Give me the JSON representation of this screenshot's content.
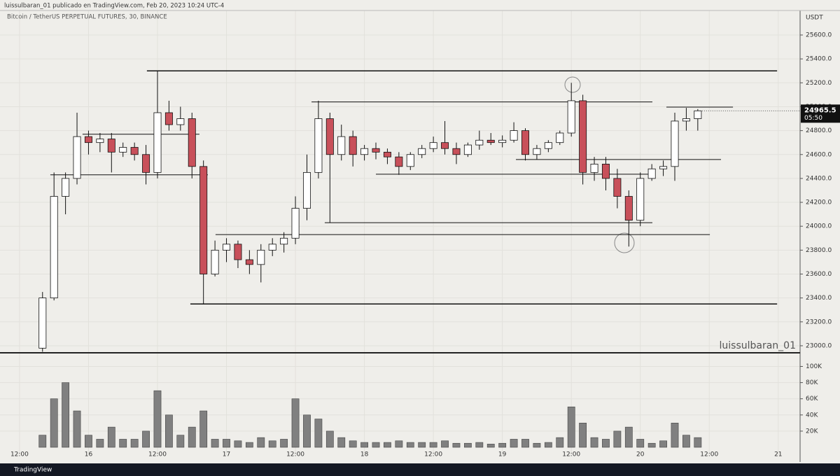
{
  "header": {
    "publisher": "luissulbaran_01 publicado en TradingView.com, Feb 20, 2023 10:24 UTC-4",
    "brand": "TradingView"
  },
  "chart_data": [
    {
      "type": "candlestick",
      "title": "Bitcoin / TetherUS PERPETUAL FUTURES, 30, BINANCE",
      "y_label": "USDT",
      "watermark": "luissulbaran_01",
      "countdown": "05:50",
      "up_color": "#ffffff",
      "down_color": "#c8505a",
      "grid": true,
      "categories": [
        null,
        null,
        null,
        null,
        null,
        null,
        null,
        null,
        null,
        null,
        null,
        null,
        null,
        null,
        null,
        null,
        null,
        null,
        null,
        null,
        null,
        null,
        null,
        null,
        null,
        null,
        null,
        null,
        null,
        null,
        null,
        null,
        null,
        null,
        null,
        null,
        null,
        null,
        null,
        null,
        null,
        null,
        null,
        null,
        null,
        null,
        null,
        null,
        null,
        null,
        null,
        null,
        null,
        null,
        null,
        null,
        null,
        null
      ],
      "open": [
        22980,
        23400,
        24250,
        24400,
        24750,
        24700,
        24730,
        24620,
        24660,
        24600,
        24450,
        24950,
        24850,
        24900,
        24500,
        23600,
        23800,
        23850,
        23720,
        23680,
        23800,
        23850,
        23900,
        24150,
        24450,
        24900,
        24600,
        24750,
        24600,
        24650,
        24620,
        24580,
        24500,
        24600,
        24650,
        24700,
        24650,
        24600,
        24680,
        24720,
        24700,
        24720,
        24800,
        24600,
        24650,
        24700,
        24780,
        25050,
        24450,
        24520,
        24400,
        24250,
        24050,
        24400,
        24480,
        24500,
        24880,
        24900
      ],
      "high": [
        23450,
        24450,
        24450,
        24950,
        24800,
        24780,
        24780,
        24700,
        24700,
        24680,
        25300,
        25050,
        25000,
        24950,
        24550,
        23880,
        23900,
        23880,
        23800,
        23850,
        23900,
        23950,
        24250,
        24600,
        25050,
        24950,
        24850,
        24800,
        24680,
        24700,
        24650,
        24620,
        24620,
        24680,
        24750,
        24880,
        24700,
        24700,
        24800,
        24780,
        24760,
        24870,
        24820,
        24680,
        24720,
        24800,
        25200,
        25100,
        24580,
        24580,
        24480,
        24300,
        24450,
        24520,
        24550,
        24950,
        24990,
        24980
      ],
      "low": [
        22950,
        23380,
        24100,
        24350,
        24600,
        24620,
        24450,
        24580,
        24550,
        24350,
        24400,
        24800,
        24800,
        24400,
        23350,
        23580,
        23700,
        23650,
        23600,
        23530,
        23750,
        23780,
        23850,
        24050,
        24400,
        24030,
        24550,
        24500,
        24550,
        24560,
        24520,
        24430,
        24470,
        24570,
        24620,
        24600,
        24520,
        24580,
        24640,
        24680,
        24660,
        24700,
        24550,
        24560,
        24620,
        24680,
        24750,
        24350,
        24380,
        24300,
        24150,
        23830,
        24000,
        24380,
        24420,
        24380,
        24800,
        24800
      ],
      "close": [
        23400,
        24250,
        24400,
        24750,
        24700,
        24730,
        24620,
        24660,
        24600,
        24450,
        24950,
        24850,
        24900,
        24500,
        23600,
        23800,
        23850,
        23720,
        23680,
        23800,
        23850,
        23900,
        24150,
        24450,
        24900,
        24600,
        24750,
        24600,
        24650,
        24620,
        24580,
        24500,
        24600,
        24650,
        24700,
        24650,
        24600,
        24680,
        24720,
        24700,
        24720,
        24800,
        24600,
        24650,
        24700,
        24780,
        25050,
        24450,
        24520,
        24400,
        24250,
        24050,
        24400,
        24480,
        24500,
        24880,
        24900,
        24965.5
      ],
      "levels": [
        {
          "price": 25300,
          "from": 9.08,
          "to": 63.9
        },
        {
          "price": 23350,
          "from": 12.86,
          "to": 63.9
        },
        {
          "price": 25040,
          "from": 23.4,
          "to": 53.05
        },
        {
          "price": 24770,
          "from": 3.48,
          "to": 13.65
        },
        {
          "price": 24430,
          "from": 0.68,
          "to": 14.38
        },
        {
          "price": 24030,
          "from": 24.55,
          "to": 53.05
        },
        {
          "price": 23930,
          "from": 15.05,
          "to": 58.05
        },
        {
          "price": 24435,
          "from": 29.0,
          "to": 53.05
        },
        {
          "price": 24558,
          "from": 41.18,
          "to": 59.02
        },
        {
          "price": 24997,
          "from": 54.27,
          "to": 60.06
        }
      ],
      "xlim": [
        -3.7,
        65.9
      ],
      "ylim": [
        22947,
        25805
      ],
      "yticks": [
        {
          "value": 23000,
          "label": "23000.0"
        },
        {
          "value": 23200,
          "label": "23200.0"
        },
        {
          "value": 23400,
          "label": "23400.0"
        },
        {
          "value": 23600,
          "label": "23600.0"
        },
        {
          "value": 23800,
          "label": "23800.0"
        },
        {
          "value": 24000,
          "label": "24000.0"
        },
        {
          "value": 24200,
          "label": "24200.0"
        },
        {
          "value": 24400,
          "label": "24400.0"
        },
        {
          "value": 24600,
          "label": "24600.0"
        },
        {
          "value": 24800,
          "label": "24800.0"
        },
        {
          "value": 25000,
          "label": "25000.0"
        },
        {
          "value": 25200,
          "label": "25200.0"
        },
        {
          "value": 25400,
          "label": "25400.0"
        },
        {
          "value": 25600,
          "label": "25600.0"
        }
      ]
    },
    {
      "type": "bar",
      "color": "#808080",
      "values": [
        15000,
        60000,
        80000,
        45000,
        15000,
        10000,
        25000,
        10000,
        10000,
        20000,
        70000,
        40000,
        15000,
        25000,
        45000,
        10000,
        10000,
        8000,
        6000,
        12000,
        8000,
        10000,
        60000,
        40000,
        35000,
        20000,
        12000,
        8000,
        6000,
        6000,
        6000,
        8000,
        6000,
        6000,
        6000,
        8000,
        5000,
        5000,
        6000,
        4000,
        5000,
        10000,
        10000,
        5000,
        6000,
        12000,
        50000,
        30000,
        12000,
        10000,
        20000,
        25000,
        10000,
        5000,
        8000,
        30000,
        15000,
        12000
      ],
      "xlim": [
        -3.7,
        65.9
      ],
      "ylim": [
        0,
        116000
      ],
      "yticks": [
        {
          "value": 20000,
          "label": "20K"
        },
        {
          "value": 40000,
          "label": "40K"
        },
        {
          "value": 60000,
          "label": "60K"
        },
        {
          "value": 80000,
          "label": "80K"
        },
        {
          "value": 100000,
          "label": "100K"
        }
      ],
      "xticks": [
        {
          "value": -2,
          "label": "12:00"
        },
        {
          "value": 4,
          "label": "16"
        },
        {
          "value": 10,
          "label": "12:00"
        },
        {
          "value": 16,
          "label": "17"
        },
        {
          "value": 22,
          "label": "12:00"
        },
        {
          "value": 28,
          "label": "18"
        },
        {
          "value": 34,
          "label": "12:00"
        },
        {
          "value": 40,
          "label": "19"
        },
        {
          "value": 46,
          "label": "12:00"
        },
        {
          "value": 52,
          "label": "20"
        },
        {
          "value": 58,
          "label": "12:00"
        },
        {
          "value": 64,
          "label": "21"
        }
      ]
    }
  ]
}
